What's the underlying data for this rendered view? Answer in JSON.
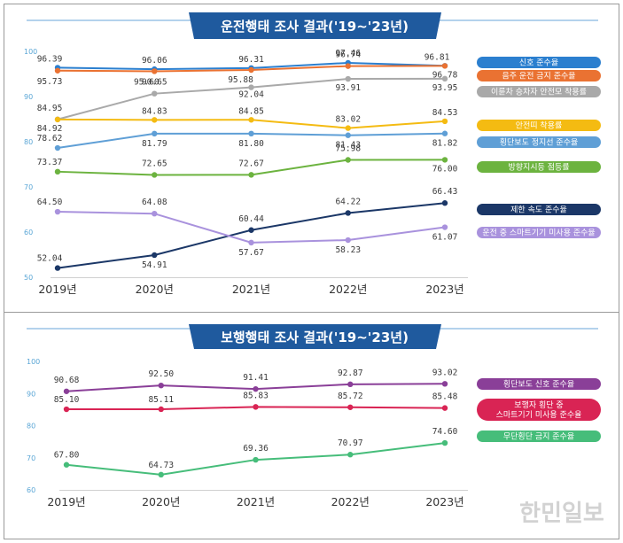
{
  "watermark": "한민일보",
  "chart_data": [
    {
      "type": "line",
      "title": "운전행태 조사 결과('19~'23년)",
      "x": [
        "2019년",
        "2020년",
        "2021년",
        "2022년",
        "2023년"
      ],
      "ylim": [
        50,
        100
      ],
      "yticks": [
        "100",
        "90",
        "80",
        "70",
        "60",
        "50"
      ],
      "legend_position": "right",
      "series": [
        {
          "name": "신호 준수율",
          "color": "#2b7fcf",
          "values": [
            96.39,
            96.06,
            96.31,
            97.46,
            96.81
          ],
          "labels": [
            "96.39",
            "96.06",
            "96.31",
            "97.46",
            "96.81"
          ]
        },
        {
          "name": "음주 운전 금지 준수율",
          "color": "#ea7232",
          "values": [
            95.73,
            95.6,
            95.88,
            96.74,
            96.78
          ],
          "labels": [
            "95.73",
            "95.60",
            "95.88",
            "96.74",
            "96.78"
          ]
        },
        {
          "name": "이륜차 승차자 안전모 착용률",
          "color": "#a9a9a9",
          "values": [
            84.95,
            90.65,
            92.04,
            93.91,
            93.95
          ],
          "labels": [
            "84.95",
            "90.65",
            "92.04",
            "93.91",
            "93.95"
          ]
        },
        {
          "name": "안전띠 착용률",
          "color": "#f4bb12",
          "values": [
            84.92,
            84.83,
            84.85,
            83.02,
            84.53
          ],
          "labels": [
            "84.92",
            "84.83",
            "84.85",
            "83.02",
            "84.53"
          ]
        },
        {
          "name": "횡단보도 정지선 준수율",
          "color": "#5f9fd6",
          "values": [
            78.62,
            81.79,
            81.8,
            81.43,
            81.82
          ],
          "labels": [
            "78.62",
            "81.79",
            "81.80",
            "81.43",
            "81.82"
          ]
        },
        {
          "name": "방향지시등 점등률",
          "color": "#6cb33f",
          "values": [
            73.37,
            72.65,
            72.67,
            75.98,
            76.0
          ],
          "labels": [
            "73.37",
            "72.65",
            "72.67",
            "75.98",
            "76.00"
          ]
        },
        {
          "name": "제한 속도 준수율",
          "color": "#1b3767",
          "values": [
            52.04,
            54.91,
            60.44,
            64.22,
            66.43
          ],
          "labels": [
            "52.04",
            "54.91",
            "60.44",
            "64.22",
            "66.43"
          ]
        },
        {
          "name": "운전 중 스마트기기 미사용 준수율",
          "color": "#a992dd",
          "values": [
            64.5,
            64.08,
            57.67,
            58.23,
            61.07
          ],
          "labels": [
            "64.50",
            "64.08",
            "57.67",
            "58.23",
            "61.07"
          ]
        }
      ]
    },
    {
      "type": "line",
      "title": "보행행태 조사 결과('19~'23년)",
      "x": [
        "2019년",
        "2020년",
        "2021년",
        "2022년",
        "2023년"
      ],
      "ylim": [
        60,
        100
      ],
      "yticks": [
        "100",
        "90",
        "80",
        "70",
        "60"
      ],
      "legend_position": "right",
      "series": [
        {
          "name": "횡단보도 신호 준수율",
          "color": "#8a3f98",
          "values": [
            90.68,
            92.5,
            91.41,
            92.87,
            93.02
          ],
          "labels": [
            "90.68",
            "92.50",
            "91.41",
            "92.87",
            "93.02"
          ]
        },
        {
          "name": "보행자 횡단 중\n스마트기기 미사용 준수율",
          "color": "#d92454",
          "values": [
            85.1,
            85.11,
            85.83,
            85.72,
            85.48
          ],
          "labels": [
            "85.10",
            "85.11",
            "85.83",
            "85.72",
            "85.48"
          ]
        },
        {
          "name": "무단횡단 금지 준수율",
          "color": "#46bd7a",
          "values": [
            67.8,
            64.73,
            69.36,
            70.97,
            74.6
          ],
          "labels": [
            "67.80",
            "64.73",
            "69.36",
            "70.97",
            "74.60"
          ]
        }
      ]
    }
  ]
}
